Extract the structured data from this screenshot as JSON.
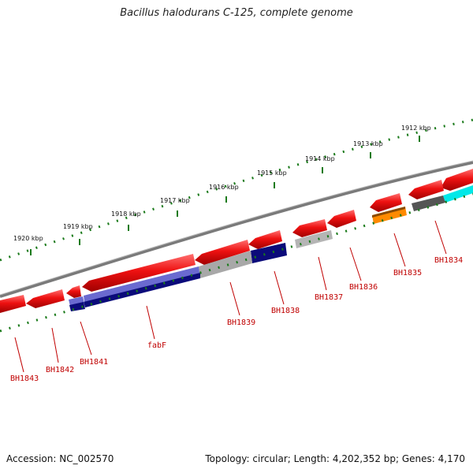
{
  "title": "Bacillus halodurans C-125, complete genome",
  "accession": "Accession: NC_002570",
  "topology": "Topology: circular; Length: 4,202,352 bp; Genes: 4,170",
  "kbp_labels": [
    "1912 kbp",
    "1913 kbp",
    "1914 kbp",
    "1915 kbp",
    "1916 kbp",
    "1917 kbp",
    "1918 kbp",
    "1919 kbp",
    "1920 kbp"
  ],
  "gene_labels": [
    "BH1834",
    "BH1835",
    "BH1836",
    "BH1837",
    "BH1838",
    "BH1839",
    "fabF",
    "BH1841",
    "BH1842",
    "BH1843"
  ],
  "colors": {
    "backbone": "#7a7a7a",
    "forward_gene": "#ee1111",
    "ticks": "#1a7a1a",
    "label": "#c00000",
    "navy": "#0b0b7a",
    "lavender": "#6a6ad0",
    "grey": "#9a9a9a",
    "orange": "#ff8a00",
    "cyan": "#00e8e8",
    "dark_grey": "#555555"
  }
}
